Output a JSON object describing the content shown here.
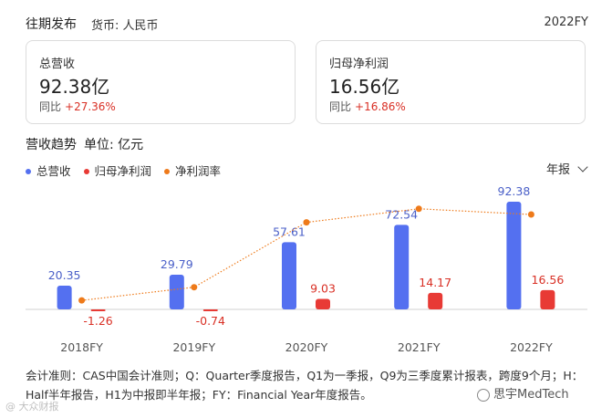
{
  "header": {
    "title": "往期发布",
    "currency": "货币: 人民币",
    "fiscal_year": "2022FY"
  },
  "cards": [
    {
      "label": "总营收",
      "value": "92.38亿",
      "yoy_label": "同比",
      "yoy_value": "+27.36%"
    },
    {
      "label": "归母净利润",
      "value": "16.56亿",
      "yoy_label": "同比",
      "yoy_value": "+16.86%"
    }
  ],
  "section": {
    "title": "营收趋势",
    "unit": "单位: 亿元",
    "period_select": "年报"
  },
  "legend": [
    {
      "name": "总营收",
      "color": "#5470f0"
    },
    {
      "name": "归母净利润",
      "color": "#e83a35"
    },
    {
      "name": "净利润率",
      "color": "#ee7a1a"
    }
  ],
  "chart_data": {
    "type": "bar",
    "categories": [
      "2018FY",
      "2019FY",
      "2020FY",
      "2021FY",
      "2022FY"
    ],
    "series": [
      {
        "name": "总营收",
        "type": "bar",
        "values": [
          20.35,
          29.79,
          57.61,
          72.54,
          92.38
        ],
        "labels": [
          "20.35",
          "29.79",
          "57.61",
          "72.54",
          "92.38"
        ],
        "color": "#5470f0"
      },
      {
        "name": "归母净利润",
        "type": "bar",
        "values": [
          -1.26,
          -0.74,
          9.03,
          14.17,
          16.56
        ],
        "labels": [
          "-1.26",
          "-0.74",
          "9.03",
          "14.17",
          "16.56"
        ],
        "color": "#e83a35"
      },
      {
        "name": "净利润率",
        "type": "line",
        "values": [
          -6.2,
          -2.5,
          15.7,
          19.5,
          17.9
        ],
        "unit": "%",
        "color": "#ee7a1a"
      }
    ],
    "ylim": [
      -2,
      100
    ],
    "line_ylim": [
      -10,
      22
    ],
    "legend_position": "top-left",
    "grid": false
  },
  "footnote": "会计准则：CAS中国会计准则；Q：Quarter季度报告，Q1为一季报，Q9为三季度累计报表，跨度9个月；H：Half半年报告，H1为中报即半年报；FY：Financial Year年度报告。",
  "watermarks": {
    "left": "@ 大众财报",
    "right": "思宇MedTech"
  }
}
